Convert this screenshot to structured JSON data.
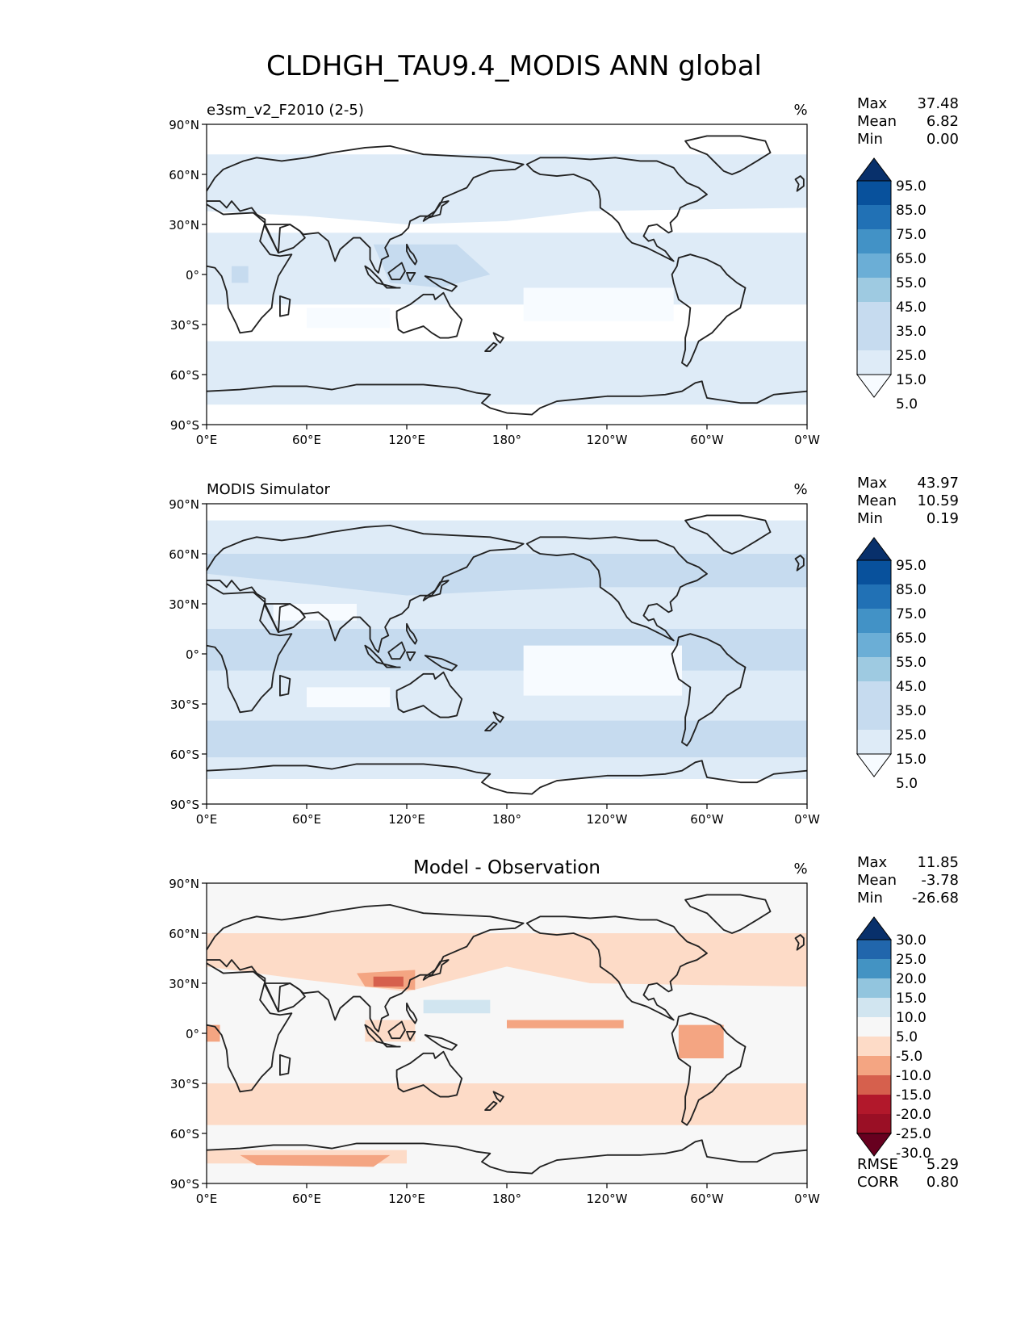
{
  "title": "CLDHGH_TAU9.4_MODIS ANN global",
  "axes": {
    "lat_ticks": [
      "90°N",
      "60°N",
      "30°N",
      "0°",
      "30°S",
      "60°S",
      "90°S"
    ],
    "lon_ticks": [
      "0°E",
      "60°E",
      "120°E",
      "180°",
      "120°W",
      "60°W",
      "0°W"
    ]
  },
  "panels": [
    {
      "title": "e3sm_v2_F2010 (2-5)",
      "units": "%",
      "stats": [
        {
          "label": "Max",
          "value": "37.48"
        },
        {
          "label": "Mean",
          "value": "6.82"
        },
        {
          "label": "Min",
          "value": "0.00"
        }
      ],
      "colorbar": {
        "labels": [
          "95.0",
          "85.0",
          "75.0",
          "65.0",
          "55.0",
          "45.0",
          "35.0",
          "25.0",
          "15.0",
          "5.0"
        ],
        "colors": [
          "#08306b",
          "#08519c",
          "#2171b5",
          "#4292c6",
          "#6baed6",
          "#9ecae1",
          "#c6dbef",
          "#c6dbef",
          "#deebf7",
          "#f7fbff"
        ]
      }
    },
    {
      "title": "MODIS Simulator",
      "units": "%",
      "stats": [
        {
          "label": "Max",
          "value": "43.97"
        },
        {
          "label": "Mean",
          "value": "10.59"
        },
        {
          "label": "Min",
          "value": "0.19"
        }
      ],
      "colorbar": {
        "labels": [
          "95.0",
          "85.0",
          "75.0",
          "65.0",
          "55.0",
          "45.0",
          "35.0",
          "25.0",
          "15.0",
          "5.0"
        ],
        "colors": [
          "#08306b",
          "#08519c",
          "#2171b5",
          "#4292c6",
          "#6baed6",
          "#9ecae1",
          "#c6dbef",
          "#c6dbef",
          "#deebf7",
          "#f7fbff"
        ]
      }
    },
    {
      "title": "Model - Observation",
      "units": "%",
      "stats": [
        {
          "label": "Max",
          "value": "11.85"
        },
        {
          "label": "Mean",
          "value": "-3.78"
        },
        {
          "label": "Min",
          "value": "-26.68"
        }
      ],
      "colorbar": {
        "labels": [
          "30.0",
          "25.0",
          "20.0",
          "15.0",
          "10.0",
          "5.0",
          "-5.0",
          "-10.0",
          "-15.0",
          "-20.0",
          "-25.0",
          "-30.0"
        ],
        "colors": [
          "#08306b",
          "#2166ac",
          "#4393c3",
          "#92c5de",
          "#d1e5f0",
          "#f7f7f7",
          "#fddbc7",
          "#f4a582",
          "#d6604d",
          "#b2182b",
          "#9a0f25",
          "#67001f"
        ]
      },
      "metrics": [
        {
          "label": "RMSE",
          "value": "5.29"
        },
        {
          "label": "CORR",
          "value": "0.80"
        }
      ]
    }
  ]
}
